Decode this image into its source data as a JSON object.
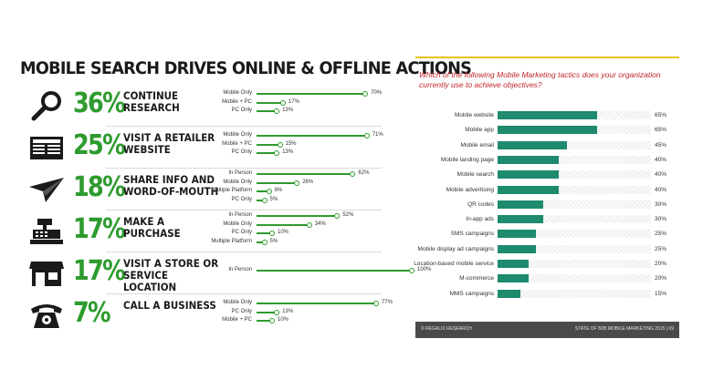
{
  "chart_data": [
    {
      "type": "bar",
      "title": "MOBILE SEARCH DRIVES ONLINE & OFFLINE ACTIONS",
      "groups": [
        {
          "icon": "magnifier-icon",
          "percent": "36%",
          "action": "CONTINUE RESEARCH",
          "series": [
            {
              "name": "Mobile Only",
              "value": 70
            },
            {
              "name": "Mobile + PC",
              "value": 17
            },
            {
              "name": "PC Only",
              "value": 13
            }
          ]
        },
        {
          "icon": "newspaper-icon",
          "percent": "25%",
          "action": "VISIT A RETAILER WEBSITE",
          "series": [
            {
              "name": "Mobile Only",
              "value": 71
            },
            {
              "name": "Mobile + PC",
              "value": 15
            },
            {
              "name": "PC Only",
              "value": 13
            }
          ]
        },
        {
          "icon": "paper-plane-icon",
          "percent": "18%",
          "action": "SHARE INFO AND WORD-OF-MOUTH",
          "series": [
            {
              "name": "In Person",
              "value": 62
            },
            {
              "name": "Mobile Only",
              "value": 26
            },
            {
              "name": "Multiple Platform",
              "value": 8
            },
            {
              "name": "PC Only",
              "value": 5
            }
          ]
        },
        {
          "icon": "cash-register-icon",
          "percent": "17%",
          "action": "MAKE A PURCHASE",
          "series": [
            {
              "name": "In Person",
              "value": 52
            },
            {
              "name": "Mobile Only",
              "value": 34
            },
            {
              "name": "PC Only",
              "value": 10
            },
            {
              "name": "Multiple Platform",
              "value": 5
            }
          ]
        },
        {
          "icon": "storefront-icon",
          "percent": "17%",
          "action": "VISIT A STORE OR SERVICE LOCATION",
          "series": [
            {
              "name": "In Person",
              "value": 100
            }
          ]
        },
        {
          "icon": "telephone-icon",
          "percent": "7%",
          "action": "CALL A BUSINESS",
          "series": [
            {
              "name": "Mobile Only",
              "value": 77
            },
            {
              "name": "PC Only",
              "value": 13
            },
            {
              "name": "Mobile + PC",
              "value": 10
            }
          ]
        }
      ],
      "xlim": [
        0,
        100
      ],
      "accent": "#2e9b2e"
    },
    {
      "type": "bar",
      "orientation": "horizontal",
      "title": "Which of the following Mobile Marketing tactics does your organization currently use to achieve objectives?",
      "categories": [
        "Mobile website",
        "Mobile app",
        "Mobile email",
        "Mobile landing page",
        "Mobile search",
        "Mobile advertising",
        "QR codes",
        "In-app ads",
        "SMS campaigns",
        "Mobile display ad campaigns",
        "Location-based mobile service",
        "M-commerce",
        "MMS campaigns"
      ],
      "values": [
        65,
        65,
        45,
        40,
        40,
        40,
        30,
        30,
        25,
        25,
        20,
        20,
        15
      ],
      "value_labels": [
        "65%",
        "65%",
        "45%",
        "40%",
        "40%",
        "40%",
        "30%",
        "30%",
        "25%",
        "25%",
        "20%",
        "20%",
        "15%"
      ],
      "xlim": [
        0,
        100
      ],
      "bar_color": "#1e8a6e",
      "title_color": "#c0262c",
      "footer_left": "© REGALIX RESEARCH",
      "footer_right": "STATE OF B2B MOBILE MARKETING 2015 | 09"
    }
  ]
}
